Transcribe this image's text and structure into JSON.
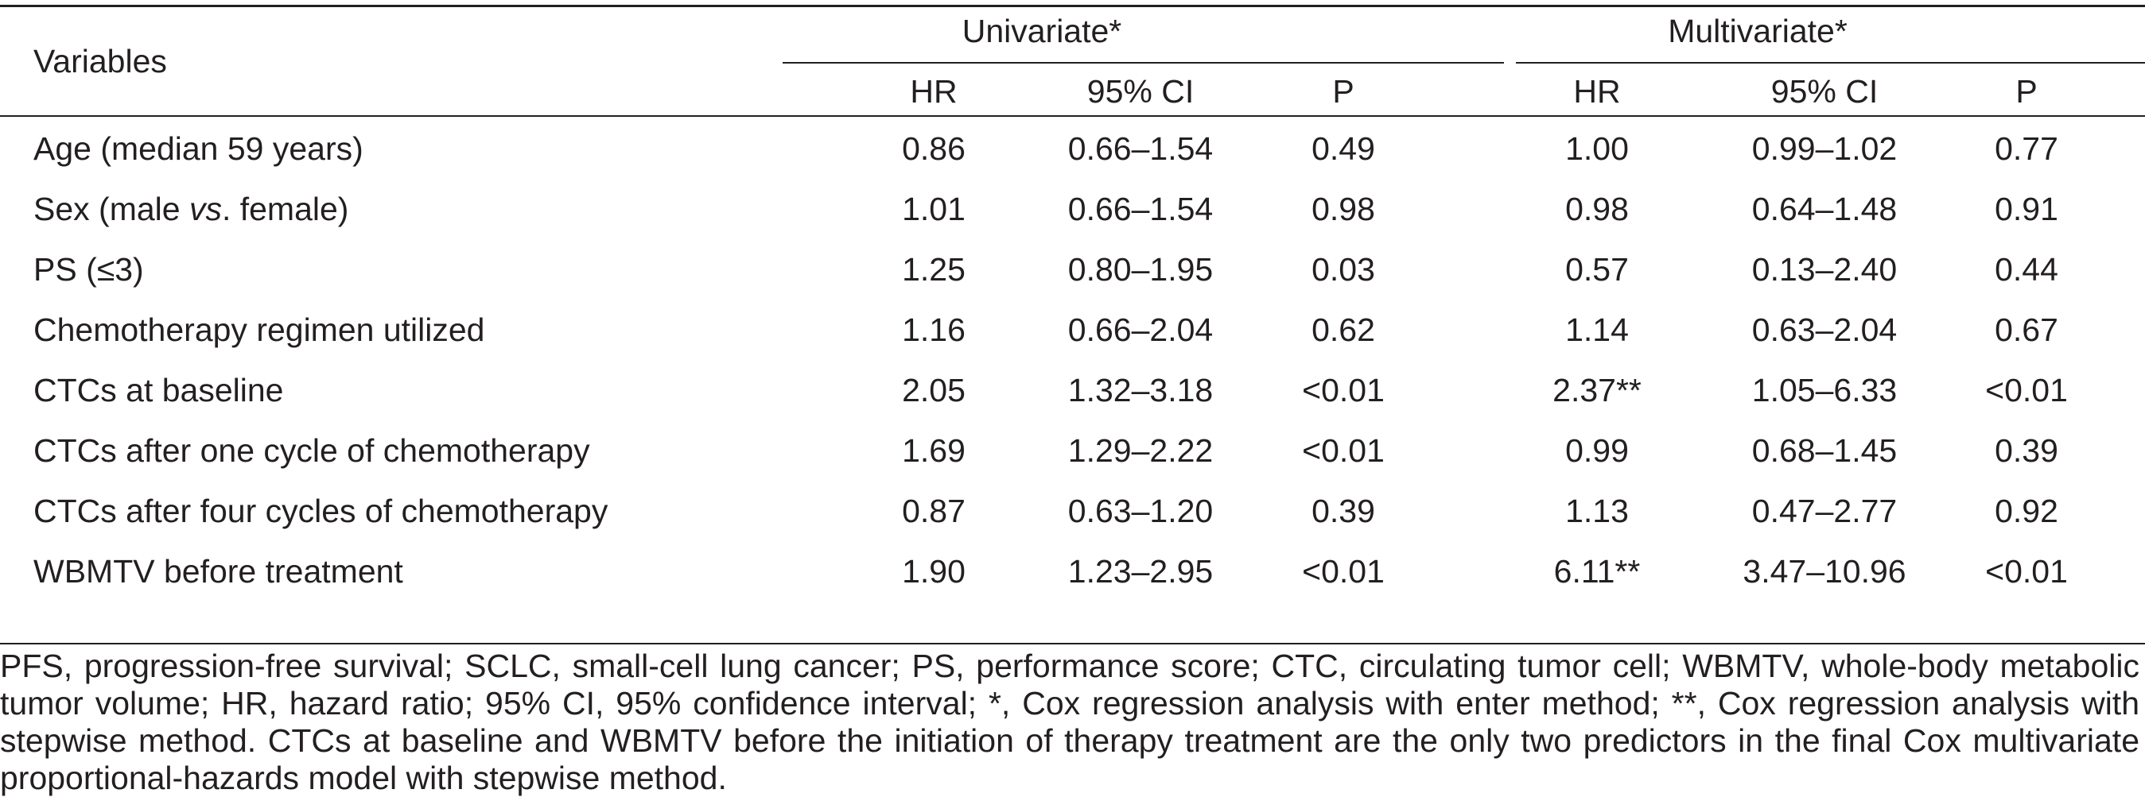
{
  "table": {
    "variables_header": "Variables",
    "groups": [
      "Univariate*",
      "Multivariate*"
    ],
    "subheaders": [
      "HR",
      "95% CI",
      "P",
      "HR",
      "95% CI",
      "P"
    ],
    "rows": [
      {
        "label_parts": [
          "Age (median 59 years)"
        ],
        "values": [
          "0.86",
          "0.66–1.54",
          "0.49",
          "1.00",
          "0.99–1.02",
          "0.77"
        ]
      },
      {
        "label_parts": [
          "Sex (male ",
          "vs",
          ". female)"
        ],
        "values": [
          "1.01",
          "0.66–1.54",
          "0.98",
          "0.98",
          "0.64–1.48",
          "0.91"
        ]
      },
      {
        "label_parts": [
          "PS (≤3)"
        ],
        "values": [
          "1.25",
          "0.80–1.95",
          "0.03",
          "0.57",
          "0.13–2.40",
          "0.44"
        ]
      },
      {
        "label_parts": [
          "Chemotherapy regimen utilized"
        ],
        "values": [
          "1.16",
          "0.66–2.04",
          "0.62",
          "1.14",
          "0.63–2.04",
          "0.67"
        ]
      },
      {
        "label_parts": [
          "CTCs at baseline"
        ],
        "values": [
          "2.05",
          "1.32–3.18",
          "<0.01",
          "2.37**",
          "1.05–6.33",
          "<0.01"
        ]
      },
      {
        "label_parts": [
          "CTCs after one cycle of chemotherapy"
        ],
        "values": [
          "1.69",
          "1.29–2.22",
          "<0.01",
          "0.99",
          "0.68–1.45",
          "0.39"
        ]
      },
      {
        "label_parts": [
          "CTCs after four cycles of chemotherapy"
        ],
        "values": [
          "0.87",
          "0.63–1.20",
          "0.39",
          "1.13",
          "0.47–2.77",
          "0.92"
        ]
      },
      {
        "label_parts": [
          "WBMTV before treatment"
        ],
        "values": [
          "1.90",
          "1.23–2.95",
          "<0.01",
          "6.11**",
          "3.47–10.96",
          "<0.01"
        ]
      }
    ],
    "footnote": "PFS, progression-free survival; SCLC, small-cell lung cancer; PS, performance score; CTC, circulating tumor cell; WBMTV, whole-body metabolic tumor volume; HR, hazard ratio; 95% CI, 95% confidence interval; *, Cox regression analysis with enter method; **, Cox regression analysis with stepwise method. CTCs at baseline and WBMTV before the initiation of therapy treatment are the only two predictors in the final Cox multivariate proportional-hazards model with stepwise method."
  }
}
